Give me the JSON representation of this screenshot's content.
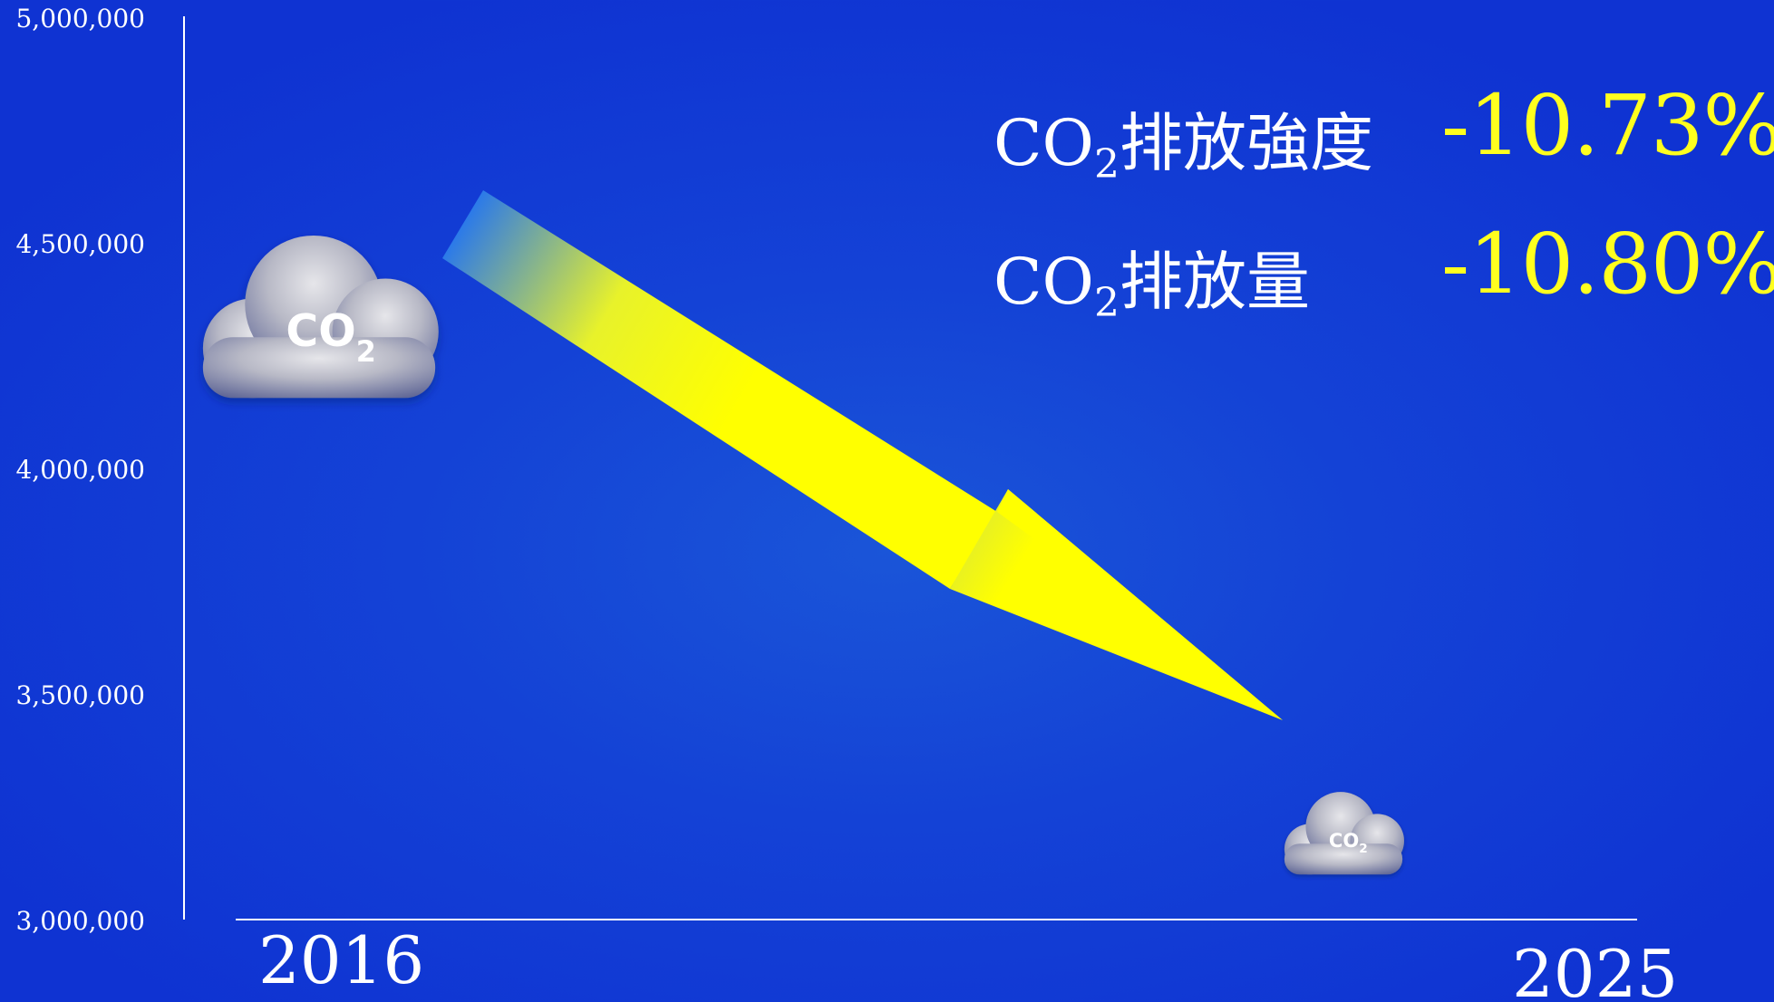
{
  "chart_data": {
    "type": "line",
    "y_ticks": [
      "5,000,000",
      "4,500,000",
      "4,000,000",
      "3,500,000",
      "3,000,000"
    ],
    "ylim": [
      3000000,
      5000000
    ],
    "x_labels": [
      "2016",
      "2025"
    ],
    "annotations": [
      {
        "label_main": "CO",
        "label_sub": "2",
        "label_rest": "排放強度",
        "value": "-10.73%"
      },
      {
        "label_main": "CO",
        "label_sub": "2",
        "label_rest": "排放量",
        "value": "-10.80%"
      }
    ],
    "grid": false,
    "legend": "none"
  },
  "clouds": [
    {
      "text_main": "CO",
      "text_sub": "2",
      "icon": "cloud-icon"
    },
    {
      "text_main": "CO",
      "text_sub": "2",
      "icon": "cloud-icon"
    }
  ],
  "colors": {
    "background": "#1442d6",
    "arrow": "#ffff00",
    "value_text": "#ffff1e",
    "axis": "#ffffff"
  }
}
